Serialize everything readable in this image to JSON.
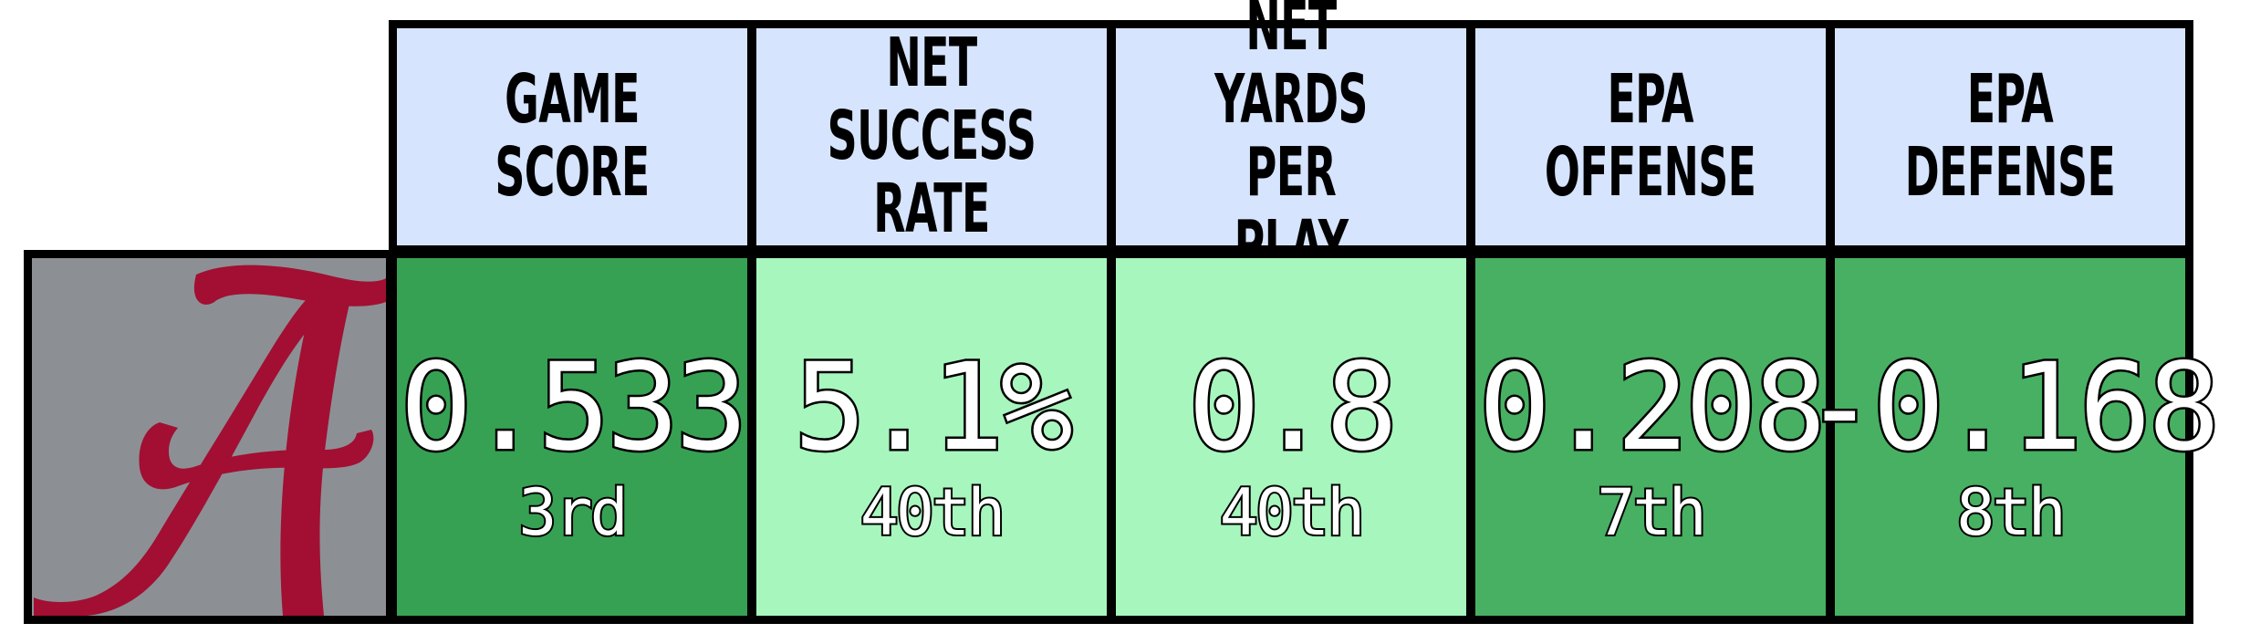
{
  "headers": [
    "GAME SCORE",
    "NET\nSUCCESS RATE",
    "NET YARDS\nPER PLAY",
    "EPA\nOFFENSE",
    "EPA\nDEFENSE"
  ],
  "logo": {
    "icon": "alabama-script-a-logo",
    "letter": "A",
    "background_color": "#8c9094",
    "letter_color": "#a20f33"
  },
  "stats": [
    {
      "value": "0.533",
      "rank": "3rd",
      "color": "#36a153"
    },
    {
      "value": "5.1%",
      "rank": "40th",
      "color": "#a7f6bd"
    },
    {
      "value": "0.8",
      "rank": "40th",
      "color": "#a7f6bd"
    },
    {
      "value": "0.208",
      "rank": "7th",
      "color": "#47b062"
    },
    {
      "value": "-0.168",
      "rank": "8th",
      "color": "#47b062"
    }
  ]
}
